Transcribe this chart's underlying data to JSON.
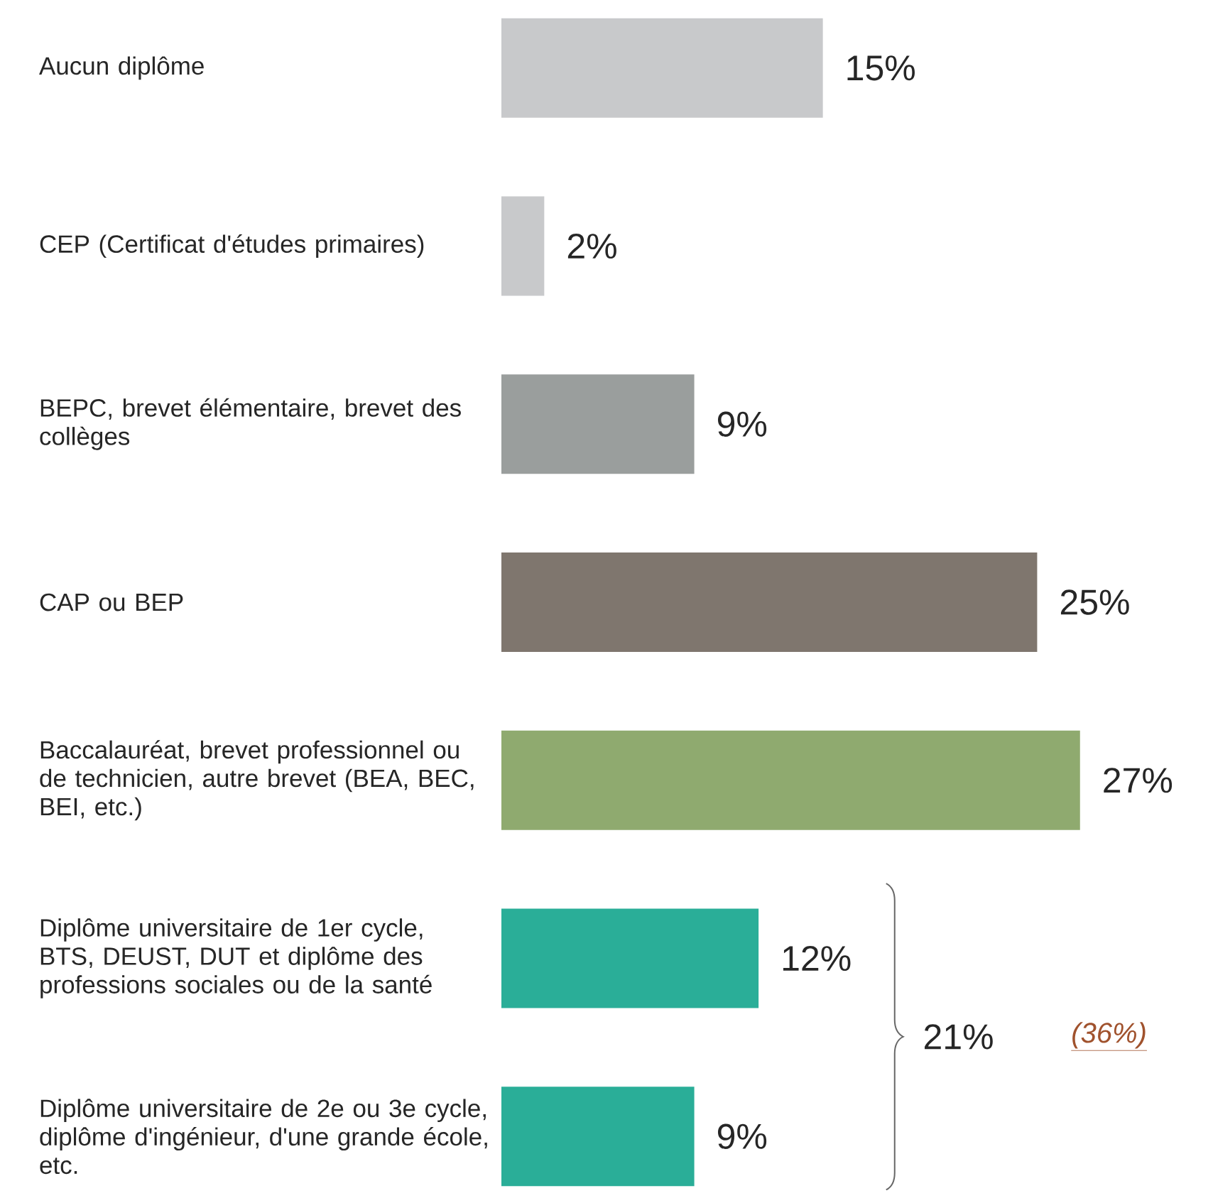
{
  "chart_data": {
    "type": "bar",
    "orientation": "horizontal",
    "categories": [
      "Aucun diplôme",
      "CEP (Certificat d'études primaires)",
      "BEPC, brevet élémentaire, brevet des collèges",
      "CAP ou BEP",
      "Baccalauréat, brevet professionnel ou de technicien, autre brevet (BEA, BEC, BEI, etc.)",
      "Diplôme universitaire de 1er cycle, BTS, DEUST, DUT et diplôme des professions sociales ou de la santé",
      "Diplôme universitaire de 2e ou 3e cycle, diplôme d'ingénieur, d'une grande école, etc."
    ],
    "values": [
      15,
      2,
      9,
      25,
      27,
      12,
      9
    ],
    "value_labels": [
      "15%",
      "2%",
      "9%",
      "25%",
      "27%",
      "12%",
      "9%"
    ],
    "colors": [
      "#c8c9cb",
      "#c8c9cb",
      "#9a9e9d",
      "#7f766e",
      "#8faa6f",
      "#2aae98",
      "#2aae98"
    ],
    "annotations": [
      "21%",
      "(36%)"
    ]
  }
}
